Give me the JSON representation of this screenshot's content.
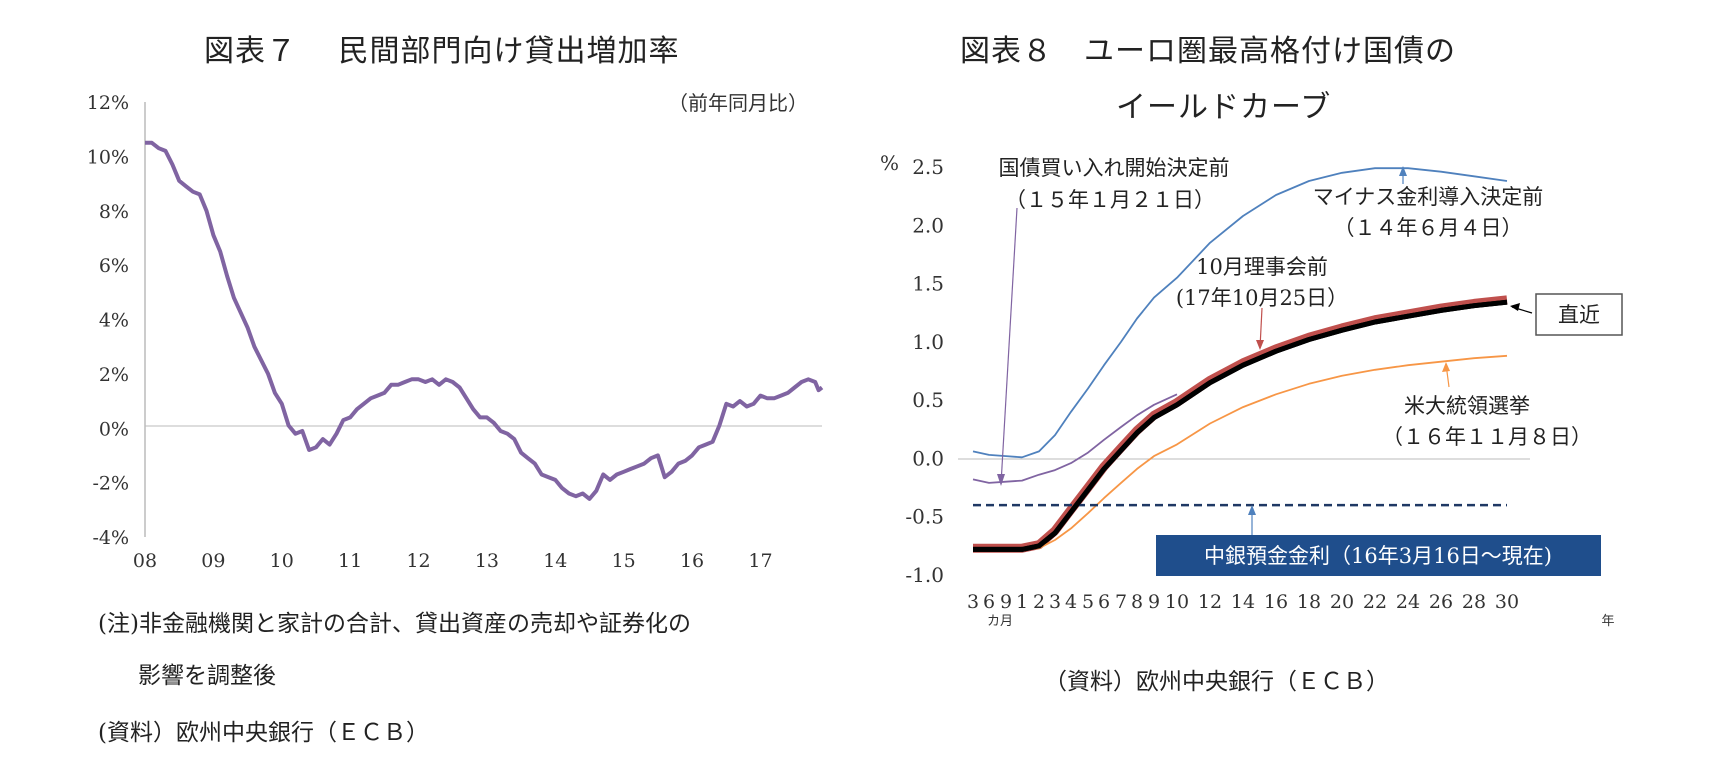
{
  "chart_data": [
    {
      "type": "line",
      "title": "図表７　 民間部門向け貸出増加率",
      "unit_note": "（前年同月比）",
      "y_ticks": [
        "12%",
        "10%",
        "8%",
        "6%",
        "4%",
        "2%",
        "0%",
        "-2%",
        "-4%"
      ],
      "x_ticks": [
        "08",
        "09",
        "10",
        "11",
        "12",
        "13",
        "14",
        "15",
        "16",
        "17"
      ],
      "ylim": [
        -4,
        12
      ],
      "xlim": [
        2008.0,
        2017.9
      ],
      "series": [
        {
          "name": "民間部門向け貸出増加率",
          "color": "#8064a2",
          "points": [
            [
              2008.0,
              10.5
            ],
            [
              2008.1,
              10.5
            ],
            [
              2008.2,
              10.3
            ],
            [
              2008.3,
              10.2
            ],
            [
              2008.4,
              9.7
            ],
            [
              2008.5,
              9.1
            ],
            [
              2008.6,
              8.9
            ],
            [
              2008.7,
              8.7
            ],
            [
              2008.8,
              8.6
            ],
            [
              2008.9,
              8.0
            ],
            [
              2009.0,
              7.1
            ],
            [
              2009.1,
              6.5
            ],
            [
              2009.2,
              5.6
            ],
            [
              2009.3,
              4.8
            ],
            [
              2009.5,
              3.7
            ],
            [
              2009.6,
              3.0
            ],
            [
              2009.8,
              2.0
            ],
            [
              2009.9,
              1.3
            ],
            [
              2010.0,
              0.9
            ],
            [
              2010.1,
              0.1
            ],
            [
              2010.2,
              -0.2
            ],
            [
              2010.3,
              -0.1
            ],
            [
              2010.4,
              -0.8
            ],
            [
              2010.5,
              -0.7
            ],
            [
              2010.6,
              -0.4
            ],
            [
              2010.7,
              -0.6
            ],
            [
              2010.8,
              -0.2
            ],
            [
              2010.9,
              0.3
            ],
            [
              2011.0,
              0.4
            ],
            [
              2011.1,
              0.7
            ],
            [
              2011.2,
              0.9
            ],
            [
              2011.3,
              1.1
            ],
            [
              2011.4,
              1.2
            ],
            [
              2011.5,
              1.3
            ],
            [
              2011.6,
              1.6
            ],
            [
              2011.7,
              1.6
            ],
            [
              2011.8,
              1.7
            ],
            [
              2011.9,
              1.8
            ],
            [
              2012.0,
              1.8
            ],
            [
              2012.1,
              1.7
            ],
            [
              2012.2,
              1.8
            ],
            [
              2012.3,
              1.6
            ],
            [
              2012.4,
              1.8
            ],
            [
              2012.5,
              1.7
            ],
            [
              2012.6,
              1.5
            ],
            [
              2012.7,
              1.1
            ],
            [
              2012.8,
              0.7
            ],
            [
              2012.9,
              0.4
            ],
            [
              2013.0,
              0.4
            ],
            [
              2013.1,
              0.2
            ],
            [
              2013.2,
              -0.1
            ],
            [
              2013.3,
              -0.2
            ],
            [
              2013.4,
              -0.4
            ],
            [
              2013.5,
              -0.9
            ],
            [
              2013.6,
              -1.1
            ],
            [
              2013.7,
              -1.3
            ],
            [
              2013.8,
              -1.7
            ],
            [
              2013.9,
              -1.8
            ],
            [
              2014.0,
              -1.9
            ],
            [
              2014.1,
              -2.2
            ],
            [
              2014.2,
              -2.4
            ],
            [
              2014.3,
              -2.5
            ],
            [
              2014.4,
              -2.4
            ],
            [
              2014.5,
              -2.6
            ],
            [
              2014.6,
              -2.3
            ],
            [
              2014.7,
              -1.7
            ],
            [
              2014.8,
              -1.9
            ],
            [
              2014.9,
              -1.7
            ],
            [
              2015.0,
              -1.6
            ],
            [
              2015.1,
              -1.5
            ],
            [
              2015.2,
              -1.4
            ],
            [
              2015.3,
              -1.3
            ],
            [
              2015.4,
              -1.1
            ],
            [
              2015.5,
              -1.0
            ],
            [
              2015.6,
              -1.8
            ],
            [
              2015.7,
              -1.6
            ],
            [
              2015.8,
              -1.3
            ],
            [
              2015.9,
              -1.2
            ],
            [
              2016.0,
              -1.0
            ],
            [
              2016.1,
              -0.7
            ],
            [
              2016.2,
              -0.6
            ],
            [
              2016.3,
              -0.5
            ],
            [
              2016.4,
              0.1
            ],
            [
              2016.5,
              0.9
            ],
            [
              2016.6,
              0.8
            ],
            [
              2016.7,
              1.0
            ],
            [
              2016.8,
              0.8
            ],
            [
              2016.9,
              0.9
            ],
            [
              2017.0,
              1.2
            ],
            [
              2017.1,
              1.1
            ],
            [
              2017.2,
              1.1
            ],
            [
              2017.3,
              1.2
            ],
            [
              2017.4,
              1.3
            ],
            [
              2017.5,
              1.5
            ],
            [
              2017.6,
              1.7
            ],
            [
              2017.7,
              1.8
            ],
            [
              2017.8,
              1.7
            ],
            [
              2017.85,
              1.4
            ],
            [
              2017.9,
              1.5
            ]
          ]
        }
      ],
      "notes": [
        "(注)非金融機関と家計の合計、貸出資産の売却や証券化の",
        "影響を調整後",
        "(資料）欧州中央銀行（ＥＣＢ）"
      ]
    },
    {
      "type": "line",
      "title_line1": "図表８　ユーロ圏最高格付け国債の",
      "title_line2": "イールドカーブ",
      "y_unit": "%",
      "y_ticks": [
        "2.5",
        "2.0",
        "1.5",
        "1.0",
        "0.5",
        "0.0",
        "-0.5",
        "-1.0"
      ],
      "ylim": [
        -1.0,
        2.5
      ],
      "x_ticks": [
        "3",
        "6",
        "9",
        "1",
        "2",
        "3",
        "4",
        "5",
        "6",
        "7",
        "8",
        "9",
        "10",
        "12",
        "14",
        "16",
        "18",
        "20",
        "22",
        "24",
        "26",
        "28",
        "30"
      ],
      "x_tick_values": [
        0.25,
        0.5,
        0.75,
        1,
        2,
        3,
        4,
        5,
        6,
        7,
        8,
        9,
        10,
        12,
        14,
        16,
        18,
        20,
        22,
        24,
        26,
        28,
        30
      ],
      "x_sublabel_months": "カ月",
      "x_sublabel_years": "年",
      "series": [
        {
          "name": "マイナス金利導入決定前（１４年６月４日）",
          "color": "#4f81bd",
          "points": [
            [
              0.25,
              0.06
            ],
            [
              0.5,
              0.03
            ],
            [
              0.75,
              0.02
            ],
            [
              1,
              0.01
            ],
            [
              2,
              0.06
            ],
            [
              3,
              0.2
            ],
            [
              4,
              0.4
            ],
            [
              5,
              0.6
            ],
            [
              6,
              0.8
            ],
            [
              7,
              1.0
            ],
            [
              8,
              1.2
            ],
            [
              9,
              1.38
            ],
            [
              10,
              1.55
            ],
            [
              12,
              1.85
            ],
            [
              14,
              2.08
            ],
            [
              16,
              2.26
            ],
            [
              18,
              2.38
            ],
            [
              20,
              2.45
            ],
            [
              22,
              2.49
            ],
            [
              24,
              2.49
            ],
            [
              26,
              2.46
            ],
            [
              28,
              2.42
            ],
            [
              30,
              2.38
            ]
          ]
        },
        {
          "name": "国債買い入れ開始決定前（１５年１月２１日）",
          "color": "#8064a2",
          "points": [
            [
              0.25,
              -0.18
            ],
            [
              0.5,
              -0.21
            ],
            [
              0.75,
              -0.2
            ],
            [
              1,
              -0.19
            ],
            [
              2,
              -0.14
            ],
            [
              3,
              -0.1
            ],
            [
              4,
              -0.04
            ],
            [
              5,
              0.05
            ],
            [
              6,
              0.16
            ],
            [
              7,
              0.27
            ],
            [
              8,
              0.37
            ],
            [
              9,
              0.46
            ],
            [
              10,
              0.55
            ]
          ]
        },
        {
          "name": "10月理事会前（17年10月25日）",
          "color": "#c0504d",
          "points": [
            [
              0.25,
              -0.77
            ],
            [
              0.5,
              -0.77
            ],
            [
              0.75,
              -0.77
            ],
            [
              1,
              -0.77
            ],
            [
              2,
              -0.74
            ],
            [
              3,
              -0.62
            ],
            [
              4,
              -0.44
            ],
            [
              5,
              -0.25
            ],
            [
              6,
              -0.07
            ],
            [
              7,
              0.09
            ],
            [
              8,
              0.24
            ],
            [
              9,
              0.37
            ],
            [
              10,
              0.48
            ],
            [
              12,
              0.67
            ],
            [
              14,
              0.82
            ],
            [
              16,
              0.94
            ],
            [
              18,
              1.04
            ],
            [
              20,
              1.12
            ],
            [
              22,
              1.19
            ],
            [
              24,
              1.24
            ],
            [
              26,
              1.29
            ],
            [
              28,
              1.33
            ],
            [
              30,
              1.36
            ]
          ]
        },
        {
          "name": "直近",
          "color": "#000000",
          "points": [
            [
              0.25,
              -0.78
            ],
            [
              0.5,
              -0.78
            ],
            [
              0.75,
              -0.78
            ],
            [
              1,
              -0.78
            ],
            [
              2,
              -0.75
            ],
            [
              3,
              -0.64
            ],
            [
              4,
              -0.46
            ],
            [
              5,
              -0.27
            ],
            [
              6,
              -0.09
            ],
            [
              7,
              0.07
            ],
            [
              8,
              0.22
            ],
            [
              9,
              0.35
            ],
            [
              10,
              0.46
            ],
            [
              12,
              0.65
            ],
            [
              14,
              0.8
            ],
            [
              16,
              0.92
            ],
            [
              18,
              1.02
            ],
            [
              20,
              1.1
            ],
            [
              22,
              1.17
            ],
            [
              24,
              1.22
            ],
            [
              26,
              1.27
            ],
            [
              28,
              1.31
            ],
            [
              30,
              1.34
            ]
          ]
        },
        {
          "name": "米大統領選挙（１６年１１月８日）",
          "color": "#f79646",
          "points": [
            [
              0.25,
              -0.78
            ],
            [
              0.5,
              -0.78
            ],
            [
              0.75,
              -0.78
            ],
            [
              1,
              -0.78
            ],
            [
              2,
              -0.77
            ],
            [
              3,
              -0.7
            ],
            [
              4,
              -0.6
            ],
            [
              5,
              -0.47
            ],
            [
              6,
              -0.34
            ],
            [
              7,
              -0.21
            ],
            [
              8,
              -0.09
            ],
            [
              9,
              0.02
            ],
            [
              10,
              0.12
            ],
            [
              12,
              0.3
            ],
            [
              14,
              0.44
            ],
            [
              16,
              0.55
            ],
            [
              18,
              0.64
            ],
            [
              20,
              0.71
            ],
            [
              22,
              0.76
            ],
            [
              24,
              0.8
            ],
            [
              26,
              0.83
            ],
            [
              28,
              0.86
            ],
            [
              30,
              0.88
            ]
          ]
        },
        {
          "name": "中銀預金金利（16年3月16日～現在)",
          "color": "#1f3864",
          "dashed": true,
          "points": [
            [
              0.25,
              -0.4
            ],
            [
              30,
              -0.4
            ]
          ]
        }
      ],
      "annotations": {
        "qe_line1": "国債買い入れ開始決定前",
        "qe_line2": "（１５年１月２１日）",
        "neg_line1": "マイナス金利導入決定前",
        "neg_line2": "（１４年６月４日）",
        "oct_line1": "10月理事会前",
        "oct_line2": "(17年10月25日）",
        "latest": "直近",
        "us_line1": "米大統領選挙",
        "us_line2": "（１６年１１月８日）",
        "deposit": "中銀預金金利（16年3月16日～現在)"
      },
      "source": "（資料）欧州中央銀行（ＥＣＢ）"
    }
  ]
}
